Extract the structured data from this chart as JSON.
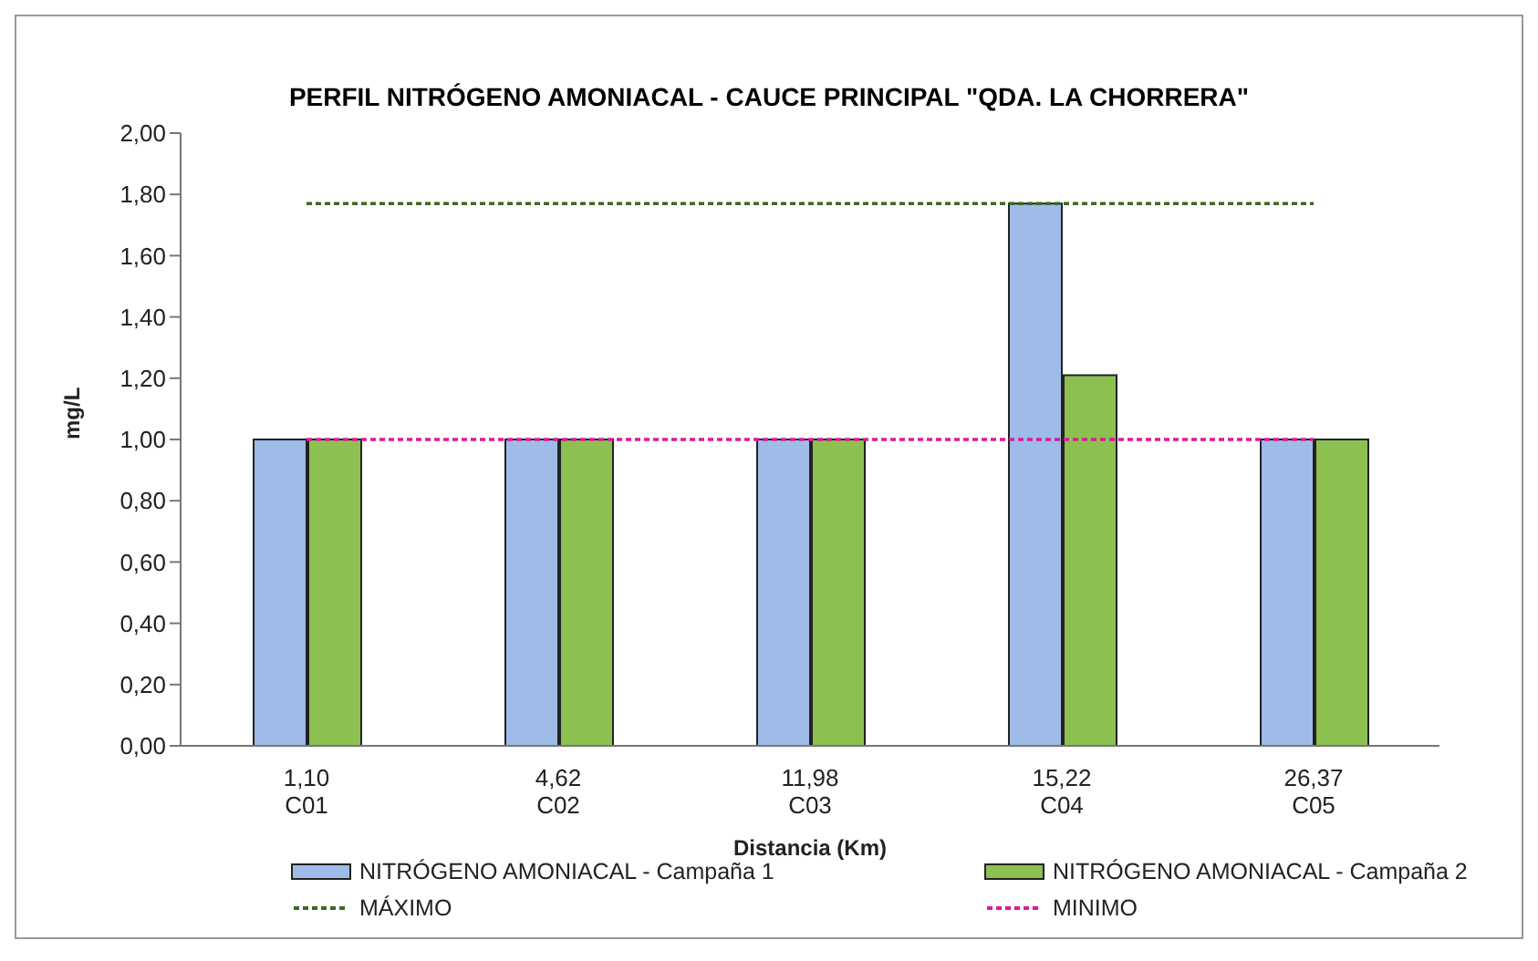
{
  "chart_data": {
    "type": "bar",
    "title": "PERFIL NITRÓGENO AMONIACAL - CAUCE PRINCIPAL \"QDA. LA CHORRERA\"",
    "xlabel": "Distancia (Km)",
    "ylabel": "mg/L",
    "categories": [
      "1,10\nC01",
      "4,62\nC02",
      "11,98\nC03",
      "15,22\nC04",
      "26,37\nC05"
    ],
    "series": [
      {
        "name": "NITRÓGENO AMONIACAL - Campaña 1",
        "color": "#9fbbe8",
        "values": [
          1.0,
          1.0,
          1.0,
          1.77,
          1.0
        ]
      },
      {
        "name": "NITRÓGENO AMONIACAL - Campaña 2",
        "color": "#8cc152",
        "values": [
          1.0,
          1.0,
          1.0,
          1.21,
          1.0
        ]
      },
      {
        "name": "MÁXIMO",
        "type": "line",
        "color": "#3a6b22",
        "line_style": "dashed",
        "values": [
          1.77,
          1.77,
          1.77,
          1.77,
          1.77
        ]
      },
      {
        "name": "MINIMO",
        "type": "line",
        "color": "#e0189c",
        "line_style": "dashed",
        "values": [
          1.0,
          1.0,
          1.0,
          1.0,
          1.0
        ]
      }
    ],
    "ylim": [
      0,
      2
    ],
    "yticks": [
      {
        "value": 0,
        "label": "0,00"
      },
      {
        "value": 0.2,
        "label": "0,20"
      },
      {
        "value": 0.4,
        "label": "0,40"
      },
      {
        "value": 0.6,
        "label": "0,60"
      },
      {
        "value": 0.8,
        "label": "0,80"
      },
      {
        "value": 1.0,
        "label": "1,00"
      },
      {
        "value": 1.2,
        "label": "1,20"
      },
      {
        "value": 1.4,
        "label": "1,40"
      },
      {
        "value": 1.6,
        "label": "1,60"
      },
      {
        "value": 1.8,
        "label": "1,80"
      },
      {
        "value": 2.0,
        "label": "2,00"
      }
    ],
    "grid": false,
    "marker": "none",
    "legend": "bottom"
  }
}
